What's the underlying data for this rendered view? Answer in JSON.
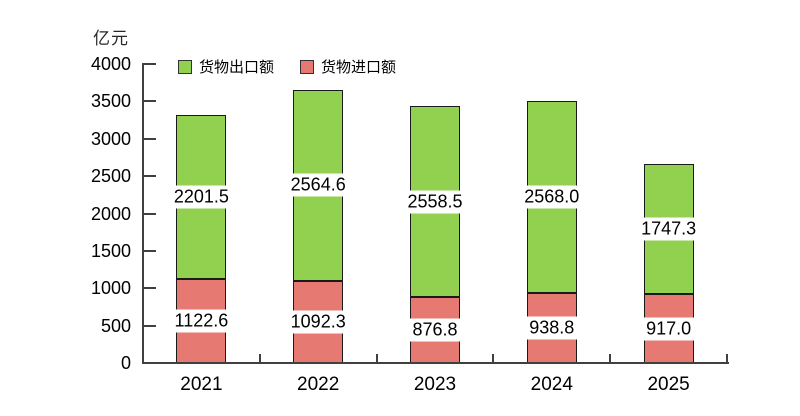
{
  "chart_data": {
    "type": "bar",
    "stacked": true,
    "title": "",
    "unit_label": "亿元",
    "categories": [
      "2021",
      "2022",
      "2023",
      "2024",
      "2025"
    ],
    "series": [
      {
        "name": "货物出口额",
        "color": "#92D050",
        "border_color": "#1a1a1a",
        "values": [
          2201.5,
          2564.6,
          2558.5,
          2568.0,
          1747.3
        ]
      },
      {
        "name": "货物进口额",
        "color": "#E67A73",
        "border_color": "#1a1a1a",
        "values": [
          1122.6,
          1092.3,
          876.8,
          938.8,
          917.0
        ]
      }
    ],
    "stack_order_bottom_to_top": [
      "货物进口额",
      "货物出口额"
    ],
    "ylim": [
      0,
      4000
    ],
    "y_ticks": [
      0,
      500,
      1000,
      1500,
      2000,
      2500,
      3000,
      3500,
      4000
    ],
    "grid": false,
    "legend_position": "top",
    "data_label_format": "one decimal, white box centered in each segment"
  },
  "colors": {
    "axis": "#404040",
    "text": "#000000",
    "background": "#ffffff"
  }
}
